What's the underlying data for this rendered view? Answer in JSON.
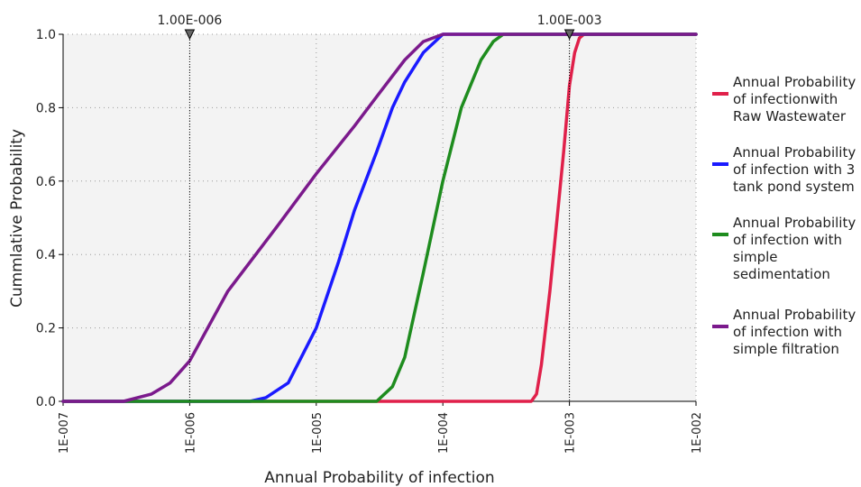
{
  "chart_data": {
    "type": "line",
    "title": "",
    "xlabel": "Annual Probability of infection",
    "ylabel": "Cummlative Probability",
    "xscale": "log",
    "xlim": [
      1e-07,
      0.01
    ],
    "ylim": [
      0.0,
      1.0
    ],
    "x_ticks": [
      1e-07,
      1e-06,
      1e-05,
      0.0001,
      0.001,
      0.01
    ],
    "x_tick_labels": [
      "1E-007",
      "1E-006",
      "1E-005",
      "1E-004",
      "1E-003",
      "1E-002"
    ],
    "y_ticks": [
      0.0,
      0.2,
      0.4,
      0.6,
      0.8,
      1.0
    ],
    "y_tick_labels": [
      "0.0",
      "0.2",
      "0.4",
      "0.6",
      "0.8",
      "1.0"
    ],
    "grid": true,
    "legend_position": "right",
    "markers": [
      {
        "label": "1.00E-006",
        "x": 1e-06
      },
      {
        "label": "1.00E-003",
        "x": 0.001
      }
    ],
    "series": [
      {
        "name": "Annual Probability of infectionwith Raw Wastewater",
        "color": "#e0204a",
        "x": [
          1e-07,
          0.0005,
          0.00055,
          0.0006,
          0.0007,
          0.0008,
          0.0009,
          0.001,
          0.0011,
          0.0012,
          0.0013,
          0.01
        ],
        "y": [
          0.0,
          0.0,
          0.02,
          0.1,
          0.3,
          0.5,
          0.68,
          0.86,
          0.95,
          0.99,
          1.0,
          1.0
        ]
      },
      {
        "name": "Annual Probability of infection with 3 tank pond system",
        "color": "#1a1aff",
        "x": [
          1e-07,
          3e-06,
          4e-06,
          6e-06,
          1e-05,
          1.5e-05,
          2e-05,
          3e-05,
          4e-05,
          5e-05,
          7e-05,
          0.0001,
          0.01
        ],
        "y": [
          0.0,
          0.0,
          0.01,
          0.05,
          0.2,
          0.38,
          0.52,
          0.68,
          0.8,
          0.87,
          0.95,
          1.0,
          1.0
        ]
      },
      {
        "name": "Annual Probability of infection with simple sedimentation",
        "color": "#1e8c1e",
        "x": [
          1e-07,
          3e-05,
          4e-05,
          5e-05,
          7e-05,
          0.0001,
          0.00014,
          0.0002,
          0.00025,
          0.0003,
          0.01
        ],
        "y": [
          0.0,
          0.0,
          0.04,
          0.12,
          0.35,
          0.6,
          0.8,
          0.93,
          0.98,
          1.0,
          1.0
        ]
      },
      {
        "name": "Annual Probability of infection with simple filtration",
        "color": "#7b1a8c",
        "x": [
          1e-07,
          3e-07,
          5e-07,
          7e-07,
          1e-06,
          2e-06,
          5e-06,
          1e-05,
          2e-05,
          3e-05,
          5e-05,
          7e-05,
          0.0001,
          0.01
        ],
        "y": [
          0.0,
          0.0,
          0.02,
          0.05,
          0.11,
          0.3,
          0.48,
          0.62,
          0.75,
          0.83,
          0.93,
          0.98,
          1.0,
          1.0
        ]
      }
    ]
  }
}
